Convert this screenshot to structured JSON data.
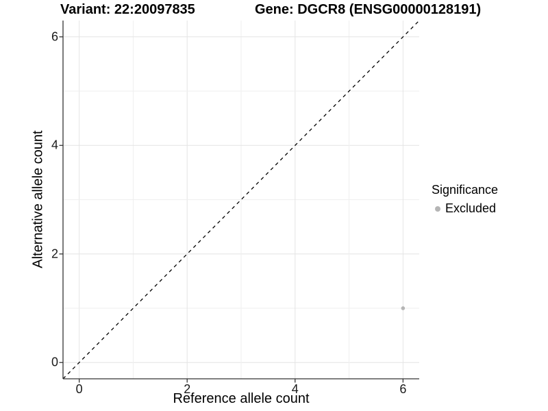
{
  "chart_data": {
    "type": "scatter",
    "titles": {
      "left": "Variant: 22:20097835",
      "right": "Gene: DGCR8 (ENSG00000128191)"
    },
    "xlabel": "Reference allele count",
    "ylabel": "Alternative allele count",
    "xlim": [
      -0.3,
      6.3
    ],
    "ylim": [
      -0.3,
      6.3
    ],
    "x_ticks": [
      0,
      2,
      4,
      6
    ],
    "y_ticks": [
      0,
      2,
      4,
      6
    ],
    "gridlines": [
      0,
      1,
      2,
      3,
      4,
      5,
      6
    ],
    "grid": true,
    "points": [
      {
        "x": 6,
        "y": 1,
        "series": "Excluded"
      }
    ],
    "reference_line": {
      "type": "identity",
      "from": [
        -0.3,
        -0.3
      ],
      "to": [
        6.3,
        6.3
      ],
      "style": "dashed",
      "color": "#000000"
    },
    "legend": {
      "title": "Significance",
      "position": "right",
      "items": [
        {
          "label": "Excluded",
          "color": "#b5b5b5"
        }
      ]
    },
    "colors": {
      "point": "#b5b5b5",
      "grid_major": "#e4e4e4",
      "grid_minor": "#efefef",
      "axis": "#333333",
      "tick": "#333333"
    }
  }
}
